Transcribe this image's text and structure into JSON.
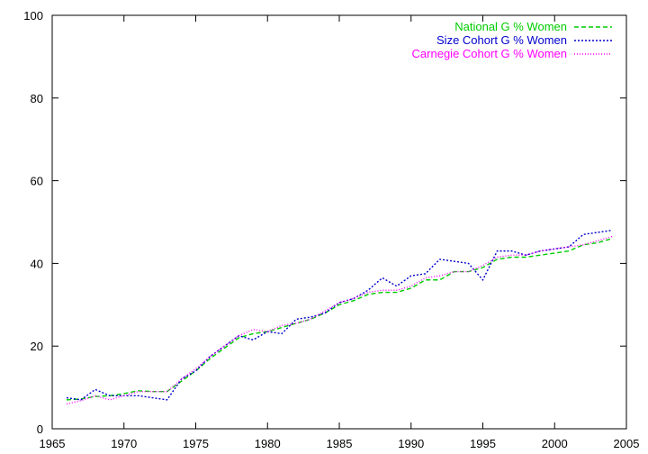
{
  "chart_data": {
    "type": "line",
    "title": "",
    "xlabel": "",
    "ylabel": "",
    "xlim": [
      1965,
      2005
    ],
    "ylim": [
      0,
      100
    ],
    "x_ticks": [
      1965,
      1970,
      1975,
      1980,
      1985,
      1990,
      1995,
      2000,
      2005
    ],
    "y_ticks": [
      0,
      20,
      40,
      60,
      80,
      100
    ],
    "grid": false,
    "legend_position": "top-right",
    "x": [
      1966,
      1967,
      1968,
      1969,
      1970,
      1971,
      1972,
      1973,
      1974,
      1975,
      1976,
      1977,
      1978,
      1979,
      1980,
      1981,
      1982,
      1983,
      1984,
      1985,
      1986,
      1987,
      1988,
      1989,
      1990,
      1991,
      1992,
      1993,
      1994,
      1995,
      1996,
      1997,
      1998,
      1999,
      2000,
      2001,
      2002,
      2003,
      2004
    ],
    "series": [
      {
        "name": "National G % Women",
        "color": "#00cc00",
        "dash": "dashed",
        "values": [
          7.0,
          7.2,
          7.8,
          8.0,
          8.5,
          9.2,
          9.0,
          9.0,
          11.5,
          14.0,
          17.0,
          19.5,
          22.0,
          23.0,
          23.5,
          24.5,
          25.5,
          26.5,
          28.0,
          30.0,
          31.0,
          32.5,
          33.0,
          33.0,
          34.0,
          36.0,
          36.0,
          38.0,
          38.0,
          39.0,
          41.0,
          41.5,
          41.5,
          42.0,
          42.5,
          43.0,
          44.5,
          45.0,
          46.0
        ]
      },
      {
        "name": "Size Cohort G % Women",
        "color": "#0000cc",
        "dash": "dotted",
        "values": [
          7.5,
          7.0,
          9.5,
          8.0,
          8.0,
          8.0,
          7.5,
          7.0,
          12.0,
          14.0,
          17.5,
          20.0,
          22.5,
          21.5,
          23.5,
          23.0,
          26.5,
          27.0,
          28.0,
          30.5,
          31.5,
          33.5,
          36.5,
          34.5,
          37.0,
          37.5,
          41.0,
          40.5,
          40.0,
          36.0,
          43.0,
          43.0,
          42.0,
          43.0,
          43.5,
          44.0,
          47.0,
          47.5,
          48.0
        ]
      },
      {
        "name": "Carnegie Cohort G % Women",
        "color": "#ff00ff",
        "dash": "fine-dotted",
        "values": [
          6.0,
          6.8,
          8.0,
          7.0,
          8.0,
          9.0,
          9.0,
          9.0,
          12.0,
          14.5,
          17.5,
          20.0,
          22.5,
          24.0,
          23.5,
          25.0,
          25.5,
          26.5,
          28.5,
          30.5,
          31.5,
          33.0,
          33.5,
          33.5,
          34.5,
          36.5,
          37.0,
          38.0,
          38.0,
          39.5,
          41.5,
          42.0,
          42.0,
          43.0,
          43.5,
          44.0,
          44.5,
          45.5,
          46.5
        ]
      }
    ]
  }
}
